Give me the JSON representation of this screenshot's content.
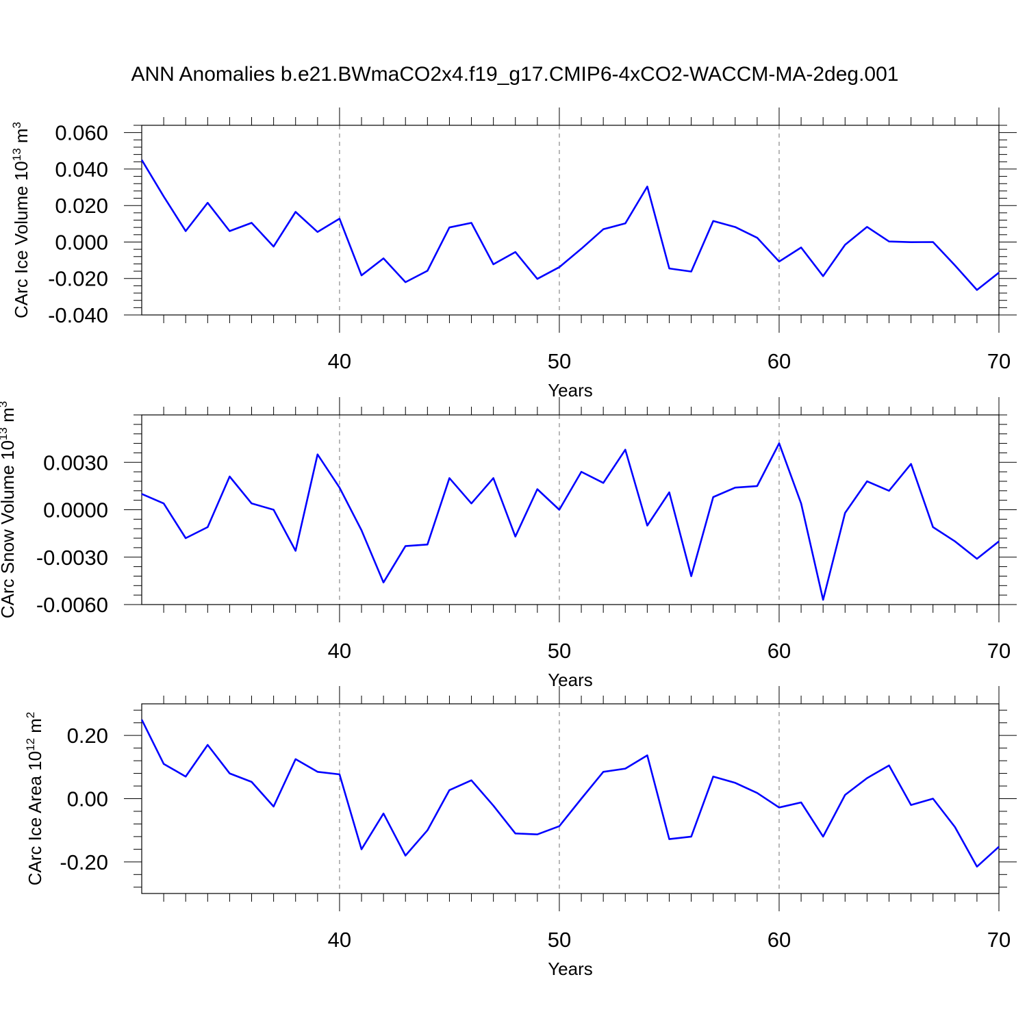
{
  "title": "ANN Anomalies b.e21.BWmaCO2x4.f19_g17.CMIP6-4xCO2-WACCM-MA-2deg.001",
  "colors": {
    "line": "#0000ff",
    "grid": "#888888"
  },
  "chart_data": [
    {
      "type": "line",
      "ylabel": "CArc Ice Volume",
      "ylabel_unit": "10",
      "ylabel_exp": "13",
      "ylabel_unit_tail": " m",
      "ylabel_unit_exp": "3",
      "xlabel": "Years",
      "xlim": [
        31,
        70
      ],
      "ylim": [
        -0.04,
        0.064
      ],
      "yticks": [
        0.06,
        0.04,
        0.02,
        0.0,
        -0.02,
        -0.04
      ],
      "yticklabels": [
        "0.060",
        "0.040",
        "0.020",
        "0.000",
        "-0.020",
        "-0.040"
      ],
      "xticks": [
        40,
        50,
        60,
        70
      ],
      "xticklabels": [
        "40",
        "50",
        "60",
        "70"
      ],
      "grid": "vertical-dashed",
      "x": [
        31,
        32,
        33,
        34,
        35,
        36,
        37,
        38,
        39,
        40,
        41,
        42,
        43,
        44,
        45,
        46,
        47,
        48,
        49,
        50,
        51,
        52,
        53,
        54,
        55,
        56,
        57,
        58,
        59,
        60,
        61,
        62,
        63,
        64,
        65,
        66,
        67,
        68,
        69,
        70
      ],
      "values": [
        0.045,
        0.025,
        0.006,
        0.0215,
        0.006,
        0.0105,
        -0.0025,
        0.0165,
        0.0055,
        0.0128,
        -0.0183,
        -0.009,
        -0.022,
        -0.0158,
        0.008,
        0.0105,
        -0.0122,
        -0.0055,
        -0.0202,
        -0.0138,
        -0.0037,
        0.007,
        0.0102,
        0.0304,
        -0.0145,
        -0.0162,
        0.0115,
        0.0082,
        0.0023,
        -0.0107,
        -0.003,
        -0.0187,
        -0.0015,
        0.0083,
        0.0003,
        -0.0001,
        0.0,
        -0.0128,
        -0.0263,
        -0.0168
      ]
    },
    {
      "type": "line",
      "ylabel": "CArc Snow Volume",
      "ylabel_unit": "10",
      "ylabel_exp": "13",
      "ylabel_unit_tail": " m",
      "ylabel_unit_exp": "3",
      "xlabel": "Years",
      "xlim": [
        31,
        70
      ],
      "ylim": [
        -0.006,
        0.006
      ],
      "yticks": [
        0.003,
        0.0,
        -0.003,
        -0.006
      ],
      "yticklabels": [
        "0.0030",
        "0.0000",
        "-0.0030",
        "-0.0060"
      ],
      "xticks": [
        40,
        50,
        60,
        70
      ],
      "xticklabels": [
        "40",
        "50",
        "60",
        "70"
      ],
      "grid": "vertical-dashed",
      "x": [
        31,
        32,
        33,
        34,
        35,
        36,
        37,
        38,
        39,
        40,
        41,
        42,
        43,
        44,
        45,
        46,
        47,
        48,
        49,
        50,
        51,
        52,
        53,
        54,
        55,
        56,
        57,
        58,
        59,
        60,
        61,
        62,
        63,
        64,
        65,
        66,
        67,
        68,
        69,
        70
      ],
      "values": [
        0.001,
        0.0004,
        -0.0018,
        -0.0011,
        0.0021,
        0.0004,
        0.0,
        -0.0026,
        0.0035,
        0.0014,
        -0.0013,
        -0.0046,
        -0.0023,
        -0.0022,
        0.002,
        0.0004,
        0.002,
        -0.0017,
        0.0013,
        0.0,
        0.0024,
        0.0017,
        0.0038,
        -0.001,
        0.0011,
        -0.0042,
        0.0008,
        0.0014,
        0.0015,
        0.0042,
        0.0004,
        -0.0057,
        -0.0002,
        0.0018,
        0.0012,
        0.0029,
        -0.0011,
        -0.002,
        -0.0031,
        -0.002
      ]
    },
    {
      "type": "line",
      "ylabel": "CArc Ice Area",
      "ylabel_unit": "10",
      "ylabel_exp": "12",
      "ylabel_unit_tail": " m",
      "ylabel_unit_exp": "2",
      "xlabel": "Years",
      "xlim": [
        31,
        70
      ],
      "ylim": [
        -0.3,
        0.3
      ],
      "yticks": [
        0.2,
        0.0,
        -0.2
      ],
      "yticklabels": [
        "0.20",
        "0.00",
        "-0.20"
      ],
      "xticks": [
        40,
        50,
        60,
        70
      ],
      "xticklabels": [
        "40",
        "50",
        "60",
        "70"
      ],
      "grid": "vertical-dashed",
      "x": [
        31,
        32,
        33,
        34,
        35,
        36,
        37,
        38,
        39,
        40,
        41,
        42,
        43,
        44,
        45,
        46,
        47,
        48,
        49,
        50,
        51,
        52,
        53,
        54,
        55,
        56,
        57,
        58,
        59,
        60,
        61,
        62,
        63,
        64,
        65,
        66,
        67,
        68,
        69,
        70
      ],
      "values": [
        0.25,
        0.11,
        0.07,
        0.17,
        0.08,
        0.053,
        -0.025,
        0.125,
        0.085,
        0.077,
        -0.16,
        -0.047,
        -0.18,
        -0.1,
        0.027,
        0.058,
        -0.022,
        -0.11,
        -0.113,
        -0.087,
        -0.0,
        0.085,
        0.095,
        0.137,
        -0.128,
        -0.12,
        0.07,
        0.05,
        0.018,
        -0.028,
        -0.012,
        -0.12,
        0.012,
        0.065,
        0.105,
        -0.02,
        0.0,
        -0.09,
        -0.215,
        -0.152
      ]
    }
  ]
}
